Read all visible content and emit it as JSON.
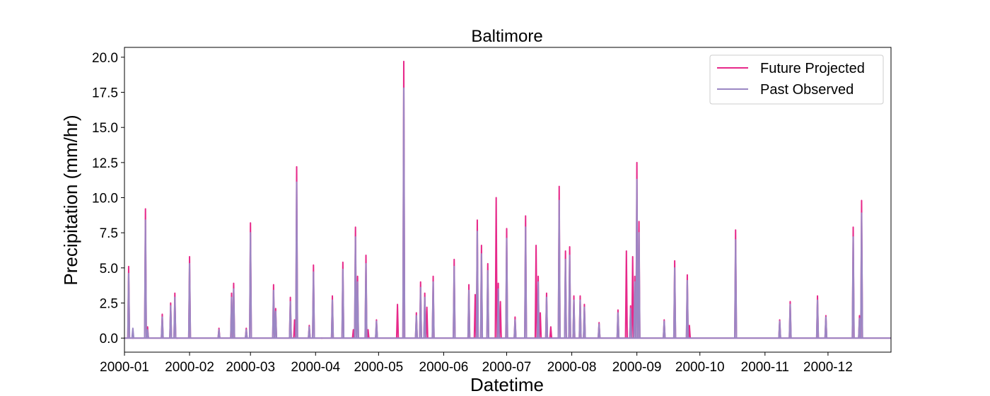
{
  "chart_data": {
    "type": "line",
    "title": "Baltimore",
    "xlabel": "Datetime",
    "ylabel": "Precipitation (mm/hr)",
    "ylim": [
      -1.0,
      20.7
    ],
    "y_ticks": [
      0.0,
      2.5,
      5.0,
      7.5,
      10.0,
      12.5,
      15.0,
      17.5,
      20.0
    ],
    "y_tick_labels": [
      "0.0",
      "2.5",
      "5.0",
      "7.5",
      "10.0",
      "12.5",
      "15.0",
      "17.5",
      "20.0"
    ],
    "xlim": [
      "2000-01-01",
      "2000-12-31"
    ],
    "x_ticks": [
      "2000-01-01",
      "2000-02-01",
      "2000-03-01",
      "2000-04-01",
      "2000-05-01",
      "2000-06-01",
      "2000-07-01",
      "2000-08-01",
      "2000-09-01",
      "2000-10-01",
      "2000-11-01",
      "2000-12-01"
    ],
    "x_tick_labels": [
      "2000-01",
      "2000-02",
      "2000-03",
      "2000-04",
      "2000-05",
      "2000-06",
      "2000-07",
      "2000-08",
      "2000-09",
      "2000-10",
      "2000-11",
      "2000-12"
    ],
    "legend": {
      "position": "top-right"
    },
    "grid": false,
    "series": [
      {
        "name": "Future Projected",
        "color": "#e7298a",
        "x": [
          "2000-01-03",
          "2000-01-05",
          "2000-01-11",
          "2000-01-12",
          "2000-01-19",
          "2000-01-23",
          "2000-01-25",
          "2000-01-26",
          "2000-02-01",
          "2000-02-15",
          "2000-02-21",
          "2000-02-22",
          "2000-02-28",
          "2000-03-01",
          "2000-03-12",
          "2000-03-13",
          "2000-03-20",
          "2000-03-22",
          "2000-03-23",
          "2000-03-29",
          "2000-03-31",
          "2000-04-04",
          "2000-04-09",
          "2000-04-14",
          "2000-04-19",
          "2000-04-20",
          "2000-04-21",
          "2000-04-25",
          "2000-04-26",
          "2000-04-30",
          "2000-05-10",
          "2000-05-13",
          "2000-05-19",
          "2000-05-21",
          "2000-05-23",
          "2000-05-24",
          "2000-05-27",
          "2000-06-06",
          "2000-06-13",
          "2000-06-16",
          "2000-06-17",
          "2000-06-19",
          "2000-06-22",
          "2000-06-26",
          "2000-06-27",
          "2000-06-28",
          "2000-07-01",
          "2000-07-05",
          "2000-07-10",
          "2000-07-15",
          "2000-07-16",
          "2000-07-17",
          "2000-07-20",
          "2000-07-22",
          "2000-07-26",
          "2000-07-29",
          "2000-07-31",
          "2000-08-02",
          "2000-08-05",
          "2000-08-07",
          "2000-08-14",
          "2000-08-23",
          "2000-08-27",
          "2000-08-29",
          "2000-08-30",
          "2000-08-31",
          "2000-09-01",
          "2000-09-02",
          "2000-09-14",
          "2000-09-19",
          "2000-09-25",
          "2000-09-26",
          "2000-10-18",
          "2000-11-08",
          "2000-11-13",
          "2000-11-26",
          "2000-11-30",
          "2000-12-13",
          "2000-12-16",
          "2000-12-17"
        ],
        "values": [
          5.1,
          0.0,
          9.2,
          0.8,
          1.7,
          2.5,
          3.2,
          0.0,
          5.8,
          0.7,
          3.2,
          3.9,
          0.7,
          8.2,
          3.8,
          2.1,
          2.9,
          1.3,
          12.2,
          0.9,
          5.2,
          0.0,
          3.0,
          5.4,
          0.6,
          7.9,
          4.4,
          5.9,
          0.6,
          1.3,
          2.4,
          19.7,
          1.8,
          4.0,
          3.2,
          2.2,
          4.4,
          5.6,
          3.8,
          3.1,
          8.4,
          6.6,
          5.3,
          10.0,
          3.9,
          2.6,
          7.8,
          1.5,
          8.7,
          6.6,
          4.4,
          1.8,
          3.2,
          0.8,
          10.8,
          6.2,
          6.5,
          3.0,
          3.0,
          2.4,
          1.1,
          2.0,
          6.2,
          2.3,
          5.8,
          4.4,
          12.5,
          8.3,
          1.3,
          5.5,
          4.5,
          0.9,
          7.7,
          1.3,
          2.6,
          3.0,
          1.6,
          7.9,
          1.6,
          9.8
        ]
      },
      {
        "name": "Past Observed",
        "color": "#9b87c4",
        "x": [
          "2000-01-03",
          "2000-01-05",
          "2000-01-11",
          "2000-01-12",
          "2000-01-19",
          "2000-01-23",
          "2000-01-25",
          "2000-02-01",
          "2000-02-15",
          "2000-02-21",
          "2000-02-22",
          "2000-02-28",
          "2000-03-01",
          "2000-03-12",
          "2000-03-13",
          "2000-03-20",
          "2000-03-23",
          "2000-03-29",
          "2000-03-31",
          "2000-04-09",
          "2000-04-14",
          "2000-04-20",
          "2000-04-21",
          "2000-04-25",
          "2000-04-30",
          "2000-05-13",
          "2000-05-19",
          "2000-05-21",
          "2000-05-23",
          "2000-05-27",
          "2000-06-06",
          "2000-06-13",
          "2000-06-17",
          "2000-06-19",
          "2000-06-22",
          "2000-06-27",
          "2000-07-01",
          "2000-07-05",
          "2000-07-10",
          "2000-07-16",
          "2000-07-20",
          "2000-07-26",
          "2000-07-29",
          "2000-07-31",
          "2000-08-02",
          "2000-08-05",
          "2000-08-07",
          "2000-08-14",
          "2000-08-23",
          "2000-08-29",
          "2000-08-31",
          "2000-09-01",
          "2000-09-02",
          "2000-09-14",
          "2000-09-19",
          "2000-09-25",
          "2000-10-18",
          "2000-11-08",
          "2000-11-13",
          "2000-11-26",
          "2000-11-30",
          "2000-12-13",
          "2000-12-16",
          "2000-12-17"
        ],
        "values": [
          4.6,
          0.7,
          8.4,
          0.6,
          1.5,
          2.3,
          2.9,
          5.3,
          0.6,
          2.9,
          3.5,
          0.6,
          7.5,
          3.4,
          1.9,
          2.6,
          11.1,
          0.8,
          4.7,
          2.7,
          4.9,
          7.2,
          4.0,
          5.3,
          1.2,
          17.8,
          1.6,
          3.6,
          2.9,
          4.0,
          5.1,
          3.4,
          7.6,
          6.0,
          4.8,
          3.5,
          7.1,
          1.3,
          7.9,
          4.0,
          2.9,
          9.8,
          5.6,
          5.9,
          2.7,
          2.7,
          2.2,
          1.0,
          1.8,
          2.1,
          4.0,
          11.3,
          7.5,
          1.2,
          5.0,
          4.1,
          7.0,
          1.2,
          2.4,
          2.7,
          1.5,
          7.2,
          1.4,
          8.9
        ]
      }
    ]
  }
}
